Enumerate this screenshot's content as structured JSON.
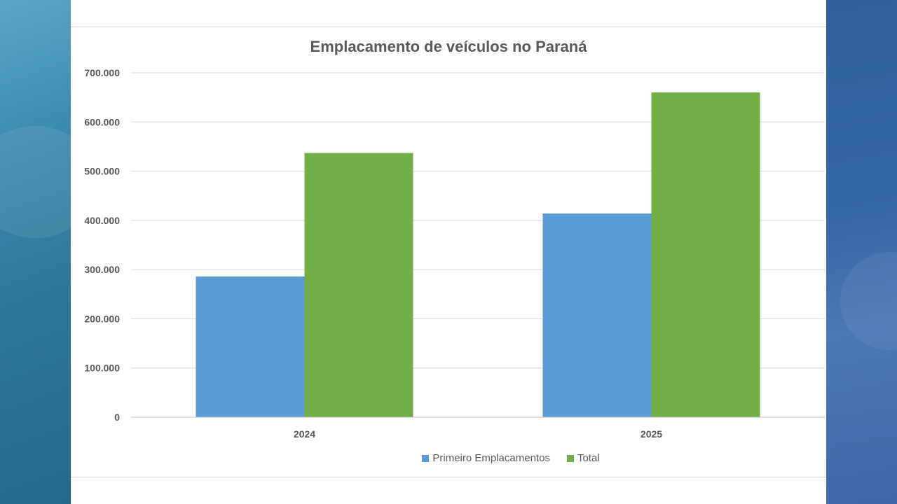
{
  "colors": {
    "primeiro": "#5b9bd5",
    "total": "#70ad47",
    "grid": "#d9d9d9",
    "text": "#595959"
  },
  "chart_data": {
    "type": "bar",
    "title": "Emplacamento de veículos no Paraná",
    "xlabel": "",
    "ylabel": "",
    "categories": [
      "2024",
      "2025"
    ],
    "series": [
      {
        "name": "Primeiro Emplacamentos",
        "values": [
          286000,
          414000
        ]
      },
      {
        "name": "Total",
        "values": [
          537000,
          660000
        ]
      }
    ],
    "ylim": [
      0,
      700000
    ],
    "yticks": [
      0,
      100000,
      200000,
      300000,
      400000,
      500000,
      600000,
      700000
    ],
    "ytick_labels": [
      "0",
      "100.000",
      "200.000",
      "300.000",
      "400.000",
      "500.000",
      "600.000",
      "700.000"
    ],
    "grid": true,
    "legend_position": "bottom"
  }
}
